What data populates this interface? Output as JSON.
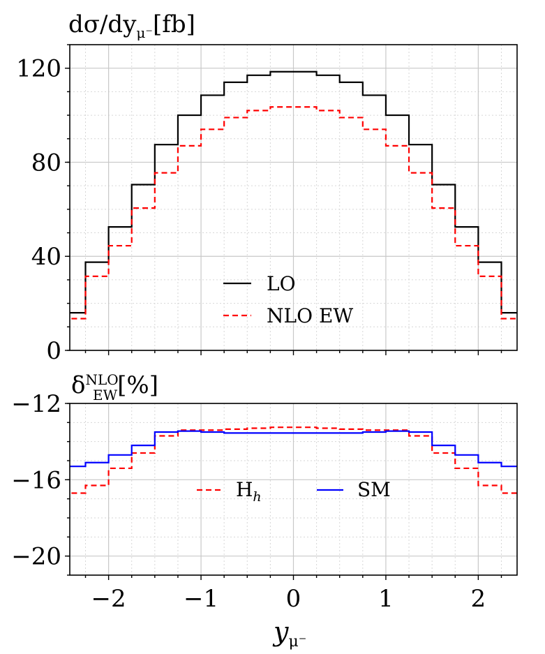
{
  "chart_data": [
    {
      "type": "line",
      "step": true,
      "panel": "top",
      "ylabel": "dσ/dy",
      "ylabel_sub": "μ⁻",
      "ylabel_unit": "[fb]",
      "ylim": [
        0,
        130
      ],
      "yticks": [
        0,
        40,
        80,
        120
      ],
      "ytick_labels": [
        "0",
        "40",
        "80",
        "120"
      ],
      "xlim": [
        -2.42,
        2.42
      ],
      "grid": true,
      "legend_position": "center",
      "bin_edges": [
        -2.5,
        -2.25,
        -2.0,
        -1.75,
        -1.5,
        -1.25,
        -1.0,
        -0.75,
        -0.5,
        -0.25,
        0.0,
        0.25,
        0.5,
        0.75,
        1.0,
        1.25,
        1.5,
        1.75,
        2.0,
        2.25,
        2.5
      ],
      "series": [
        {
          "name": "LO",
          "color": "#000000",
          "dash": "solid",
          "values": [
            16,
            37.5,
            52.5,
            70.5,
            87.5,
            100,
            108.5,
            114,
            117,
            118.5,
            118.5,
            117,
            114,
            108.5,
            100,
            87.5,
            70.5,
            52.5,
            37.5,
            16
          ]
        },
        {
          "name": "NLO EW",
          "color": "#ff0000",
          "dash": "dashed",
          "values": [
            13.5,
            31.5,
            44.5,
            60.5,
            75.5,
            87,
            94,
            99,
            102,
            103.5,
            103.5,
            102,
            99,
            94,
            87,
            75.5,
            60.5,
            44.5,
            31.5,
            13.5
          ]
        }
      ]
    },
    {
      "type": "line",
      "step": true,
      "panel": "bottom",
      "ylabel": "δ",
      "ylabel_sup": "NLO",
      "ylabel_sub": "EW",
      "ylabel_unit": "[%]",
      "ylim": [
        -21,
        -12
      ],
      "yticks": [
        -12,
        -16,
        -20
      ],
      "ytick_labels": [
        "−12",
        "−16",
        "−20"
      ],
      "xlim": [
        -2.42,
        2.42
      ],
      "xticks": [
        -2,
        -1,
        0,
        1,
        2
      ],
      "xtick_labels": [
        "−2",
        "−1",
        "0",
        "1",
        "2"
      ],
      "xlabel": "y",
      "xlabel_sub": "μ⁻",
      "grid": true,
      "legend_position": "center",
      "bin_edges": [
        -2.5,
        -2.25,
        -2.0,
        -1.75,
        -1.5,
        -1.25,
        -1.0,
        -0.75,
        -0.5,
        -0.25,
        0.0,
        0.25,
        0.5,
        0.75,
        1.0,
        1.25,
        1.5,
        1.75,
        2.0,
        2.25,
        2.5
      ],
      "series": [
        {
          "name": "H",
          "name_sub": "h",
          "color": "#ff0000",
          "dash": "dashed",
          "values": [
            -16.7,
            -16.3,
            -15.4,
            -14.6,
            -13.7,
            -13.4,
            -13.4,
            -13.35,
            -13.3,
            -13.25,
            -13.25,
            -13.3,
            -13.35,
            -13.4,
            -13.4,
            -13.7,
            -14.6,
            -15.4,
            -16.3,
            -16.7
          ]
        },
        {
          "name": "SM",
          "color": "#0000ff",
          "dash": "solid",
          "values": [
            -15.3,
            -15.1,
            -14.7,
            -14.2,
            -13.5,
            -13.45,
            -13.5,
            -13.55,
            -13.55,
            -13.55,
            -13.55,
            -13.55,
            -13.55,
            -13.5,
            -13.45,
            -13.5,
            -14.2,
            -14.7,
            -15.1,
            -15.3
          ]
        }
      ]
    }
  ]
}
